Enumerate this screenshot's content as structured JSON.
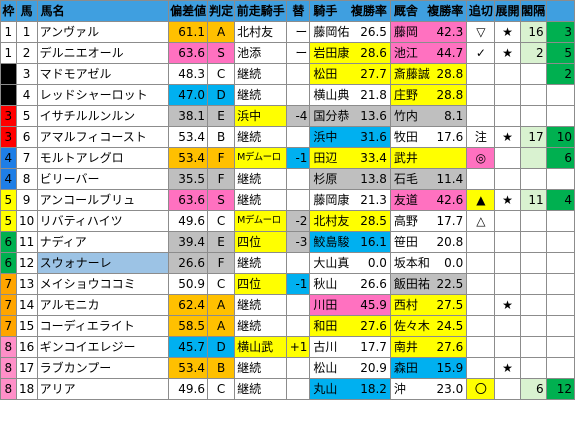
{
  "colors": {
    "header": "#3f9fe0",
    "frame1": "#ffffff",
    "frame2": "#000000",
    "frame3": "#ff0000",
    "frame4": "#1e7ee6",
    "frame5": "#ffff00",
    "frame6": "#00b050",
    "frame7": "#ffa500",
    "frame8": "#ff8fc8",
    "cell_orange": "#ffc000",
    "cell_pink": "#ff71c0",
    "cell_blue": "#00b0f0",
    "cell_gray": "#bfbfbf",
    "cell_lblue": "#9cc3e5",
    "cell_yellow": "#ffff00",
    "cell_lgreen": "#d9f2d0",
    "pos_green": "#00b050"
  },
  "headers": [
    "枠",
    "馬",
    "馬名",
    "偏差値",
    "判定",
    "前走騎手",
    "替",
    "騎手",
    "複勝率",
    "厩舎",
    "複勝率",
    "追切",
    "展開",
    "閣隔",
    ""
  ],
  "rows": [
    {
      "frame": "1",
      "num": "1",
      "name": "アンヴァル",
      "score": "61.1",
      "grade": "A",
      "prev": "北村友",
      "sw": "ー",
      "jockey": "藤岡佑",
      "jr": "26.5",
      "stable": "藤岡",
      "sr": "42.3",
      "oikiri": "▽",
      "tenkai": "★",
      "kan": "16",
      "last": "3",
      "bg": {
        "score": "#ffc000",
        "grade": "#ffc000",
        "stable": "#ff71c0",
        "sr": "#ff71c0",
        "kan": "#d9f2d0",
        "last": "#00b050"
      }
    },
    {
      "frame": "1",
      "num": "2",
      "name": "デルニエオール",
      "score": "63.6",
      "grade": "S",
      "prev": "池添",
      "sw": "ー",
      "jockey": "岩田康",
      "jr": "28.6",
      "stable": "池江",
      "sr": "44.7",
      "oikiri": "✓",
      "tenkai": "★",
      "kan": "2",
      "last": "5",
      "bg": {
        "score": "#ff71c0",
        "grade": "#ff71c0",
        "jockey": "#ffff00",
        "jr": "#ffff00",
        "stable": "#ff71c0",
        "sr": "#ff71c0",
        "kan": "#d9f2d0",
        "last": "#00b050"
      }
    },
    {
      "frame": "2",
      "num": "3",
      "name": "マドモアゼル",
      "score": "48.3",
      "grade": "C",
      "prev": "継続",
      "sw": "",
      "jockey": "松田",
      "jr": "27.7",
      "stable": "斎藤誠",
      "sr": "28.8",
      "oikiri": "",
      "tenkai": "",
      "kan": "",
      "last": "2",
      "bg": {
        "jockey": "#ffff00",
        "jr": "#ffff00",
        "stable": "#ffff00",
        "sr": "#ffff00",
        "last": "#00b050"
      }
    },
    {
      "frame": "2",
      "num": "4",
      "name": "レッドシャーロット",
      "score": "47.0",
      "grade": "D",
      "prev": "継続",
      "sw": "",
      "jockey": "横山典",
      "jr": "21.8",
      "stable": "庄野",
      "sr": "28.8",
      "oikiri": "",
      "tenkai": "",
      "kan": "",
      "last": "",
      "bg": {
        "score": "#00b0f0",
        "grade": "#00b0f0",
        "stable": "#ffff00",
        "sr": "#ffff00"
      }
    },
    {
      "frame": "3",
      "num": "5",
      "name": "イサチルルンルン",
      "score": "38.1",
      "grade": "E",
      "prev": "浜中",
      "sw": "-4",
      "jockey": "国分恭",
      "jr": "13.6",
      "stable": "竹内",
      "sr": "8.1",
      "oikiri": "",
      "tenkai": "",
      "kan": "",
      "last": "",
      "bg": {
        "score": "#bfbfbf",
        "grade": "#bfbfbf",
        "prev": "#ffff00",
        "sw": "#bfbfbf",
        "jockey": "#bfbfbf",
        "jr": "#bfbfbf",
        "stable": "#bfbfbf",
        "sr": "#bfbfbf"
      }
    },
    {
      "frame": "3",
      "num": "6",
      "name": "アマルフィコースト",
      "score": "53.4",
      "grade": "B",
      "prev": "継続",
      "sw": "",
      "jockey": "浜中",
      "jr": "31.6",
      "stable": "牧田",
      "sr": "17.6",
      "oikiri": "注",
      "tenkai": "★",
      "kan": "17",
      "last": "10",
      "bg": {
        "jockey": "#00b0f0",
        "jr": "#00b0f0",
        "kan": "#d9f2d0",
        "last": "#00b050"
      }
    },
    {
      "frame": "4",
      "num": "7",
      "name": "モルトアレグロ",
      "score": "53.4",
      "grade": "F",
      "prev": "Mデムーロ",
      "sw": "-1",
      "jockey": "田辺",
      "jr": "33.4",
      "stable": "武井",
      "sr": "",
      "oikiri": "◎",
      "tenkai": "",
      "kan": "",
      "last": "6",
      "bg": {
        "score": "#ffc000",
        "grade": "#ffc000",
        "prev": "#ffff00",
        "sw": "#00b0f0",
        "jockey": "#ffff00",
        "jr": "#ffff00",
        "stable": "#ffff00",
        "oikiri": "#ff71c0",
        "kan": "#d9f2d0",
        "last": "#00b050"
      }
    },
    {
      "frame": "4",
      "num": "8",
      "name": "ビリーバー",
      "score": "35.5",
      "grade": "F",
      "prev": "継続",
      "sw": "",
      "jockey": "杉原",
      "jr": "13.8",
      "stable": "石毛",
      "sr": "11.4",
      "oikiri": "",
      "tenkai": "",
      "kan": "",
      "last": "",
      "bg": {
        "score": "#bfbfbf",
        "grade": "#bfbfbf",
        "jr": "#bfbfbf",
        "stable": "#bfbfbf",
        "sr": "#bfbfbf"
      }
    },
    {
      "frame": "5",
      "num": "9",
      "name": "アンコールブリュ",
      "score": "63.6",
      "grade": "S",
      "prev": "継続",
      "sw": "",
      "jockey": "藤岡康",
      "jr": "21.3",
      "stable": "友道",
      "sr": "42.6",
      "oikiri": "▲",
      "tenkai": "★",
      "kan": "11",
      "last": "4",
      "bg": {
        "score": "#ff71c0",
        "grade": "#ff71c0",
        "stable": "#ff71c0",
        "sr": "#ff71c0",
        "oikiri": "#ffff00",
        "kan": "#d9f2d0",
        "last": "#00b050"
      }
    },
    {
      "frame": "5",
      "num": "10",
      "name": "リバティハイツ",
      "score": "49.6",
      "grade": "C",
      "prev": "Mデムーロ",
      "sw": "-2",
      "jockey": "北村友",
      "jr": "28.5",
      "stable": "高野",
      "sr": "17.7",
      "oikiri": "△",
      "tenkai": "",
      "kan": "",
      "last": "",
      "bg": {
        "prev": "#ffff00",
        "sw": "#bfbfbf",
        "jockey": "#ffff00",
        "jr": "#ffff00"
      }
    },
    {
      "frame": "6",
      "num": "11",
      "name": "ナディア",
      "score": "39.4",
      "grade": "E",
      "prev": "四位",
      "sw": "-3",
      "jockey": "鮫島駿",
      "jr": "16.1",
      "stable": "笹田",
      "sr": "20.8",
      "oikiri": "",
      "tenkai": "",
      "kan": "",
      "last": "",
      "bg": {
        "score": "#bfbfbf",
        "grade": "#bfbfbf",
        "prev": "#ffff00",
        "sw": "#bfbfbf",
        "jockey": "#00b0f0",
        "jr": "#00b0f0"
      }
    },
    {
      "frame": "6",
      "num": "12",
      "name": "スウォナーレ",
      "score": "26.6",
      "grade": "F",
      "prev": "継続",
      "sw": "",
      "jockey": "大山真",
      "jr": "0.0",
      "stable": "坂本和",
      "sr": "0.0",
      "oikiri": "",
      "tenkai": "",
      "kan": "",
      "last": "",
      "bg": {
        "name": "#9cc3e5",
        "score": "#bfbfbf",
        "grade": "#bfbfbf"
      }
    },
    {
      "frame": "7",
      "num": "13",
      "name": "メイショウココミ",
      "score": "50.9",
      "grade": "C",
      "prev": "四位",
      "sw": "-1",
      "jockey": "秋山",
      "jr": "26.6",
      "stable": "飯田祐",
      "sr": "22.5",
      "oikiri": "",
      "tenkai": "",
      "kan": "",
      "last": "",
      "bg": {
        "prev": "#ffff00",
        "sw": "#00b0f0",
        "stable": "#bfbfbf",
        "sr": "#bfbfbf"
      }
    },
    {
      "frame": "7",
      "num": "14",
      "name": "アルモニカ",
      "score": "62.4",
      "grade": "A",
      "prev": "継続",
      "sw": "",
      "jockey": "川田",
      "jr": "45.9",
      "stable": "西村",
      "sr": "27.5",
      "oikiri": "",
      "tenkai": "★",
      "kan": "",
      "last": "",
      "bg": {
        "score": "#ffc000",
        "grade": "#ffc000",
        "jockey": "#ff71c0",
        "jr": "#ff71c0",
        "stable": "#ffff00",
        "sr": "#ffff00"
      }
    },
    {
      "frame": "7",
      "num": "15",
      "name": "コーディエライト",
      "score": "58.5",
      "grade": "A",
      "prev": "継続",
      "sw": "",
      "jockey": "和田",
      "jr": "27.6",
      "stable": "佐々木",
      "sr": "24.5",
      "oikiri": "",
      "tenkai": "",
      "kan": "",
      "last": "",
      "bg": {
        "score": "#ffc000",
        "grade": "#ffc000",
        "jockey": "#ffff00",
        "jr": "#ffff00",
        "stable": "#ffff00",
        "sr": "#ffff00"
      }
    },
    {
      "frame": "8",
      "num": "16",
      "name": "ギンコイエレジー",
      "score": "45.7",
      "grade": "D",
      "prev": "横山武",
      "sw": "+1",
      "jockey": "古川",
      "jr": "17.7",
      "stable": "南井",
      "sr": "27.6",
      "oikiri": "",
      "tenkai": "",
      "kan": "",
      "last": "",
      "bg": {
        "score": "#00b0f0",
        "grade": "#00b0f0",
        "prev": "#ffff00",
        "sw": "#ffff00",
        "stable": "#ffff00",
        "sr": "#ffff00"
      }
    },
    {
      "frame": "8",
      "num": "17",
      "name": "ラブカンプー",
      "score": "53.4",
      "grade": "B",
      "prev": "継続",
      "sw": "",
      "jockey": "松山",
      "jr": "20.9",
      "stable": "森田",
      "sr": "15.9",
      "oikiri": "",
      "tenkai": "★",
      "kan": "",
      "last": "",
      "bg": {
        "score": "#ffc000",
        "grade": "#ffc000",
        "stable": "#00b0f0",
        "sr": "#00b0f0"
      }
    },
    {
      "frame": "8",
      "num": "18",
      "name": "アリア",
      "score": "49.6",
      "grade": "C",
      "prev": "継続",
      "sw": "",
      "jockey": "丸山",
      "jr": "18.2",
      "stable": "沖",
      "sr": "23.0",
      "oikiri": "〇",
      "tenkai": "",
      "kan": "6",
      "last": "12",
      "bg": {
        "jockey": "#00b0f0",
        "jr": "#00b0f0",
        "oikiri": "#ffff00",
        "kan": "#d9f2d0",
        "last": "#00b050"
      }
    }
  ]
}
